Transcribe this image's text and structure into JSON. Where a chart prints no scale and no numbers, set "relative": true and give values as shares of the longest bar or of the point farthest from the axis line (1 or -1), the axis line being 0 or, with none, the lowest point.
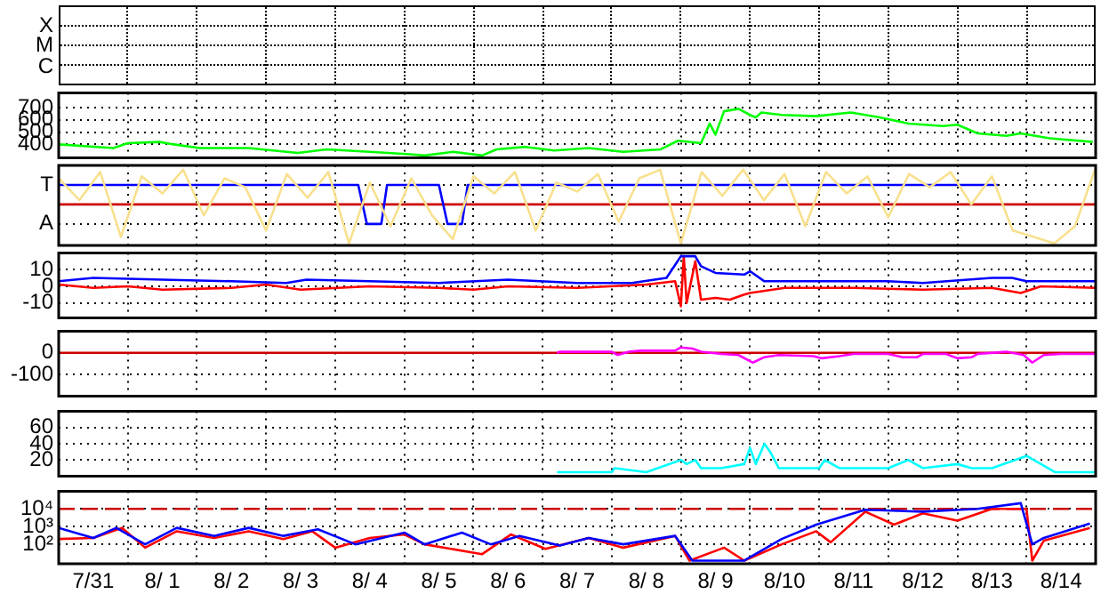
{
  "chart_data": [
    {
      "type": "other",
      "annotations": [
        "X",
        "M",
        "C"
      ]
    },
    {
      "type": "line",
      "grid": true,
      "tick_labels": "y",
      "xlim": [
        "--07-31T00:00",
        "--08-15T00:00"
      ],
      "ylim": [
        290,
        820
      ],
      "xticks": [
        {
          "value": "--07-31T00:00",
          "label": null
        },
        {
          "value": "--08-01T00:00",
          "label": null
        },
        {
          "value": "--08-02T00:00",
          "label": null
        },
        {
          "value": "--08-03T00:00",
          "label": null
        },
        {
          "value": "--08-04T00:00",
          "label": null
        },
        {
          "value": "--08-05T00:00",
          "label": null
        },
        {
          "value": "--08-06T00:00",
          "label": null
        },
        {
          "value": "--08-07T00:00",
          "label": null
        },
        {
          "value": "--08-08T00:00",
          "label": null
        },
        {
          "value": "--08-09T00:00",
          "label": null
        },
        {
          "value": "--08-10T00:00",
          "label": null
        },
        {
          "value": "--08-11T00:00",
          "label": null
        },
        {
          "value": "--08-12T00:00",
          "label": null
        },
        {
          "value": "--08-13T00:00",
          "label": null
        },
        {
          "value": "--08-14T00:00",
          "label": null
        },
        {
          "value": "--08-15T00:00",
          "label": null
        }
      ],
      "yticks": [
        400,
        500,
        600,
        700
      ],
      "series": [
        {
          "color": "#00ff00",
          "x": [
            "--07-31T00:00",
            "--07-31T19:00",
            "--08-01T00:00",
            "--08-01T11:00",
            "--08-01T16:00",
            "--08-02T01:00",
            "--08-02T18:00",
            "--08-03T11:00",
            "--08-03T21:00",
            "--08-04T12:00",
            "--08-05T02:00",
            "--08-05T07:00",
            "--08-05T17:00",
            "--08-06T03:00",
            "--08-06T08:00",
            "--08-06T18:00",
            "--08-07T04:00",
            "--08-07T16:00",
            "--08-08T04:00",
            "--08-08T17:00",
            "--08-08T23:00",
            "--08-09T07:00",
            "--08-09T10:00",
            "--08-09T12:00",
            "--08-09T15:00",
            "--08-09T20:00",
            "--08-10T00:00",
            "--08-10T02:00",
            "--08-10T04:00",
            "--08-10T11:00",
            "--08-10T23:00",
            "--08-11T11:00",
            "--08-11T21:00",
            "--08-12T07:00",
            "--08-12T19:00",
            "--08-13T00:00",
            "--08-13T07:00",
            "--08-13T17:00",
            "--08-13T22:00",
            "--08-14T08:00",
            "--08-14T23:00"
          ],
          "values": [
            400,
            370,
            410,
            420,
            400,
            370,
            370,
            330,
            360,
            340,
            320,
            310,
            340,
            310,
            360,
            380,
            350,
            370,
            340,
            360,
            430,
            410,
            570,
            480,
            670,
            690,
            640,
            620,
            660,
            640,
            630,
            660,
            620,
            570,
            550,
            560,
            490,
            470,
            490,
            450,
            420
          ]
        }
      ]
    },
    {
      "type": "line",
      "grid": true,
      "relative": true,
      "tick_labels": false,
      "xlim": [
        "--07-31T00:00",
        "--08-15T00:00"
      ],
      "xticks": [
        {
          "value": "--07-31T00:00",
          "label": null
        },
        {
          "value": "--08-01T00:00",
          "label": null
        },
        {
          "value": "--08-02T00:00",
          "label": null
        },
        {
          "value": "--08-03T00:00",
          "label": null
        },
        {
          "value": "--08-04T00:00",
          "label": null
        },
        {
          "value": "--08-05T00:00",
          "label": null
        },
        {
          "value": "--08-06T00:00",
          "label": null
        },
        {
          "value": "--08-07T00:00",
          "label": null
        },
        {
          "value": "--08-08T00:00",
          "label": null
        },
        {
          "value": "--08-09T00:00",
          "label": null
        },
        {
          "value": "--08-10T00:00",
          "label": null
        },
        {
          "value": "--08-11T00:00",
          "label": null
        },
        {
          "value": "--08-12T00:00",
          "label": null
        },
        {
          "value": "--08-13T00:00",
          "label": null
        },
        {
          "value": "--08-14T00:00",
          "label": null
        },
        {
          "value": "--08-15T00:00",
          "label": null
        }
      ],
      "annotations": [
        "T",
        "A"
      ],
      "ref_lines": [
        {
          "axis": "y",
          "value": 0,
          "color": "#cc0000"
        }
      ],
      "series": [
        {
          "color": "#f8e08e",
          "x": [
            "--07-31T00:00",
            "--07-31T07:12",
            "--07-31T14:24",
            "--07-31T21:36",
            "--08-01T04:48",
            "--08-01T12:00",
            "--08-01T19:12",
            "--08-02T02:24",
            "--08-02T09:36",
            "--08-02T16:48",
            "--08-03T00:00",
            "--08-03T07:12",
            "--08-03T14:24",
            "--08-03T21:36",
            "--08-04T04:48",
            "--08-04T12:00",
            "--08-04T19:12",
            "--08-05T02:24",
            "--08-05T09:36",
            "--08-05T16:48",
            "--08-06T00:00",
            "--08-06T07:12",
            "--08-06T14:24",
            "--08-06T21:36",
            "--08-07T04:48",
            "--08-07T12:00",
            "--08-07T19:12",
            "--08-08T02:24",
            "--08-08T09:36",
            "--08-08T16:48",
            "--08-09T00:00",
            "--08-09T07:12",
            "--08-09T14:24",
            "--08-09T21:36",
            "--08-10T04:48",
            "--08-10T12:00",
            "--08-10T19:12",
            "--08-11T02:24",
            "--08-11T09:36",
            "--08-11T16:48",
            "--08-12T00:00",
            "--08-12T07:12",
            "--08-12T14:24",
            "--08-12T21:36",
            "--08-13T04:48",
            "--08-13T12:00",
            "--08-13T19:12",
            "--08-14T02:24",
            "--08-14T09:36",
            "--08-14T16:48",
            "--08-15T00:00"
          ],
          "values": [
            0.67,
            0.11,
            0.83,
            -0.83,
            0.72,
            0.28,
            0.89,
            -0.28,
            0.67,
            0.44,
            -0.67,
            0.78,
            0.17,
            0.83,
            -1,
            0.56,
            -0.56,
            0.67,
            -0.28,
            -0.89,
            0.72,
            0.28,
            0.83,
            -0.67,
            0.56,
            0.33,
            0.78,
            -0.44,
            0.67,
            0.89,
            -1,
            0.83,
            0.22,
            0.89,
            0.11,
            0.78,
            -0.56,
            0.83,
            0.28,
            0.72,
            -0.33,
            0.78,
            0.44,
            0.83,
            0,
            0.72,
            -0.67,
            -0.83,
            -1,
            -0.56,
            0.94
          ]
        },
        {
          "color": "#0000ff",
          "x": [
            "--07-31T00:00",
            "--08-04T08:00",
            "--08-04T11:00",
            "--08-04T16:00",
            "--08-04T18:00",
            "--08-05T12:00",
            "--08-05T15:00",
            "--08-05T20:00",
            "--08-05T22:00",
            "--08-13T14:00"
          ],
          "values": [
            0.5,
            0.5,
            -0.5,
            -0.5,
            0.5,
            0.5,
            -0.5,
            -0.5,
            0.5,
            0.5
          ]
        }
      ]
    },
    {
      "type": "line",
      "grid": true,
      "tick_labels": "y",
      "xlim": [
        "--07-31T00:00",
        "--08-15T00:00"
      ],
      "ylim": [
        -19,
        20
      ],
      "xticks": [
        {
          "value": "--07-31T00:00",
          "label": null
        },
        {
          "value": "--08-01T00:00",
          "label": null
        },
        {
          "value": "--08-02T00:00",
          "label": null
        },
        {
          "value": "--08-03T00:00",
          "label": null
        },
        {
          "value": "--08-04T00:00",
          "label": null
        },
        {
          "value": "--08-05T00:00",
          "label": null
        },
        {
          "value": "--08-06T00:00",
          "label": null
        },
        {
          "value": "--08-07T00:00",
          "label": null
        },
        {
          "value": "--08-08T00:00",
          "label": null
        },
        {
          "value": "--08-09T00:00",
          "label": null
        },
        {
          "value": "--08-10T00:00",
          "label": null
        },
        {
          "value": "--08-11T00:00",
          "label": null
        },
        {
          "value": "--08-12T00:00",
          "label": null
        },
        {
          "value": "--08-13T00:00",
          "label": null
        },
        {
          "value": "--08-14T00:00",
          "label": null
        },
        {
          "value": "--08-15T00:00",
          "label": null
        }
      ],
      "yticks": [
        -10,
        0,
        10
      ],
      "series": [
        {
          "color": "#0000ff",
          "x": [
            "--07-31T00:00",
            "--07-31T12:00",
            "--08-01T12:00",
            "--08-02T12:00",
            "--08-03T07:00",
            "--08-03T14:00",
            "--08-04T12:00",
            "--08-05T12:00",
            "--08-06T12:00",
            "--08-07T12:00",
            "--08-08T07:00",
            "--08-08T19:00",
            "--08-09T00:00",
            "--08-09T05:00",
            "--08-09T07:00",
            "--08-09T12:00",
            "--08-09T22:00",
            "--08-10T00:00",
            "--08-10T05:00",
            "--08-11T00:00",
            "--08-12T00:00",
            "--08-12T12:00",
            "--08-13T12:00",
            "--08-13T19:00",
            "--08-14T00:00",
            "--08-15T00:00"
          ],
          "values": [
            3,
            5,
            4,
            3,
            2,
            4,
            3,
            2,
            4,
            2,
            2,
            5,
            18,
            18,
            12,
            8,
            7,
            9,
            3,
            3,
            3,
            2,
            5,
            5,
            3,
            3
          ]
        },
        {
          "color": "#ff0000",
          "x": [
            "--07-31T00:00",
            "--07-31T12:00",
            "--08-01T00:00",
            "--08-01T12:00",
            "--08-02T12:00",
            "--08-03T00:00",
            "--08-03T12:00",
            "--08-04T12:00",
            "--08-05T12:00",
            "--08-06T00:00",
            "--08-06T12:00",
            "--08-07T12:00",
            "--08-08T12:00",
            "--08-08T22:00",
            "--08-09T00:00",
            "--08-09T01:00",
            "--08-09T02:00",
            "--08-09T05:00",
            "--08-09T07:00",
            "--08-09T12:00",
            "--08-09T17:00",
            "--08-09T22:00",
            "--08-10T00:00",
            "--08-10T12:00",
            "--08-11T12:00",
            "--08-12T12:00",
            "--08-13T12:00",
            "--08-13T22:00",
            "--08-14T05:00",
            "--08-15T00:00"
          ],
          "values": [
            1,
            -1,
            0,
            -2,
            -1,
            1,
            -2,
            0,
            -1,
            -2,
            0,
            -1,
            1,
            3,
            -12,
            18,
            -10,
            15,
            -8,
            -7,
            -8,
            -5,
            -4,
            -1,
            -1,
            -2,
            -1,
            -4,
            0,
            -1
          ]
        }
      ]
    },
    {
      "type": "line",
      "grid": true,
      "tick_labels": "y",
      "xlim": [
        "--07-31T00:00",
        "--08-15T00:00"
      ],
      "ylim": [
        -200,
        100
      ],
      "xticks": [
        {
          "value": "--07-31T00:00",
          "label": null
        },
        {
          "value": "--08-01T00:00",
          "label": null
        },
        {
          "value": "--08-02T00:00",
          "label": null
        },
        {
          "value": "--08-03T00:00",
          "label": null
        },
        {
          "value": "--08-04T00:00",
          "label": null
        },
        {
          "value": "--08-05T00:00",
          "label": null
        },
        {
          "value": "--08-06T00:00",
          "label": null
        },
        {
          "value": "--08-07T00:00",
          "label": null
        },
        {
          "value": "--08-08T00:00",
          "label": null
        },
        {
          "value": "--08-09T00:00",
          "label": null
        },
        {
          "value": "--08-10T00:00",
          "label": null
        },
        {
          "value": "--08-11T00:00",
          "label": null
        },
        {
          "value": "--08-12T00:00",
          "label": null
        },
        {
          "value": "--08-13T00:00",
          "label": null
        },
        {
          "value": "--08-14T00:00",
          "label": null
        },
        {
          "value": "--08-15T00:00",
          "label": null
        }
      ],
      "yticks": [
        -100,
        0
      ],
      "ref_lines": [
        {
          "axis": "y",
          "value": 0,
          "color": "#cc0000"
        }
      ],
      "series": [
        {
          "color": "#ff00ff",
          "x": [
            "--08-07T05:00",
            "--08-07T06:00",
            "--08-08T00:00",
            "--08-08T02:00",
            "--08-08T06:00",
            "--08-08T10:00",
            "--08-08T22:00",
            "--08-09T00:00",
            "--08-09T04:00",
            "--08-09T07:00",
            "--08-09T14:00",
            "--08-09T20:00",
            "--08-10T01:00",
            "--08-10T05:00",
            "--08-10T10:00",
            "--08-10T22:00",
            "--08-11T01:00",
            "--08-11T07:00",
            "--08-11T12:00",
            "--08-12T00:00",
            "--08-12T05:00",
            "--08-12T10:00",
            "--08-12T12:00",
            "--08-12T20:00",
            "--08-13T00:00",
            "--08-13T05:00",
            "--08-13T07:00",
            "--08-13T17:00",
            "--08-13T23:00",
            "--08-14T02:00",
            "--08-14T06:00",
            "--08-14T12:00",
            "--08-15T00:00"
          ],
          "values": [
            0,
            5,
            5,
            -10,
            5,
            10,
            10,
            25,
            20,
            5,
            -5,
            -10,
            -45,
            -20,
            -10,
            -15,
            -25,
            -15,
            -5,
            -5,
            -20,
            -20,
            -5,
            -5,
            -25,
            -20,
            -5,
            5,
            -10,
            -45,
            -10,
            -5,
            -5
          ]
        }
      ]
    },
    {
      "type": "line",
      "grid": true,
      "tick_labels": "y",
      "xlim": [
        "--07-31T00:00",
        "--08-15T00:00"
      ],
      "ylim": [
        0,
        80
      ],
      "xticks": [
        {
          "value": "--07-31T00:00",
          "label": null
        },
        {
          "value": "--08-01T00:00",
          "label": null
        },
        {
          "value": "--08-02T00:00",
          "label": null
        },
        {
          "value": "--08-03T00:00",
          "label": null
        },
        {
          "value": "--08-04T00:00",
          "label": null
        },
        {
          "value": "--08-05T00:00",
          "label": null
        },
        {
          "value": "--08-06T00:00",
          "label": null
        },
        {
          "value": "--08-07T00:00",
          "label": null
        },
        {
          "value": "--08-08T00:00",
          "label": null
        },
        {
          "value": "--08-09T00:00",
          "label": null
        },
        {
          "value": "--08-10T00:00",
          "label": null
        },
        {
          "value": "--08-11T00:00",
          "label": null
        },
        {
          "value": "--08-12T00:00",
          "label": null
        },
        {
          "value": "--08-13T00:00",
          "label": null
        },
        {
          "value": "--08-14T00:00",
          "label": null
        },
        {
          "value": "--08-15T00:00",
          "label": null
        }
      ],
      "yticks": [
        20,
        40,
        60
      ],
      "series": [
        {
          "color": "#00ffff",
          "x": [
            "--08-07T05:00",
            "--08-08T00:00",
            "--08-08T01:00",
            "--08-08T12:00",
            "--08-09T00:00",
            "--08-09T02:00",
            "--08-09T05:00",
            "--08-09T07:00",
            "--08-09T14:00",
            "--08-09T22:00",
            "--08-10T00:00",
            "--08-10T02:00",
            "--08-10T05:00",
            "--08-10T07:00",
            "--08-10T10:00",
            "--08-11T00:00",
            "--08-11T02:00",
            "--08-11T07:00",
            "--08-12T00:00",
            "--08-12T07:00",
            "--08-12T12:00",
            "--08-13T00:00",
            "--08-13T05:00",
            "--08-13T12:00",
            "--08-14T00:00",
            "--08-14T05:00",
            "--08-14T10:00",
            "--08-15T00:00"
          ],
          "values": [
            5,
            5,
            10,
            5,
            20,
            15,
            20,
            10,
            10,
            15,
            35,
            15,
            40,
            30,
            10,
            10,
            20,
            10,
            10,
            20,
            10,
            15,
            10,
            10,
            25,
            15,
            5,
            5
          ]
        }
      ]
    },
    {
      "type": "line",
      "log": "y",
      "grid": true,
      "xlim": [
        "--07-31T00:00",
        "--08-15T00:00"
      ],
      "ylim": [
        8,
        100000
      ],
      "xticks": [
        {
          "value": "--07-31T00:00",
          "label": null
        },
        {
          "value": "--07-31T12:00",
          "label": "7/31"
        },
        {
          "value": "--08-01T00:00",
          "label": null
        },
        {
          "value": "--08-01T12:00",
          "label": "8/ 1"
        },
        {
          "value": "--08-02T00:00",
          "label": null
        },
        {
          "value": "--08-02T12:00",
          "label": "8/ 2"
        },
        {
          "value": "--08-03T00:00",
          "label": null
        },
        {
          "value": "--08-03T12:00",
          "label": "8/ 3"
        },
        {
          "value": "--08-04T00:00",
          "label": null
        },
        {
          "value": "--08-04T12:00",
          "label": "8/ 4"
        },
        {
          "value": "--08-05T00:00",
          "label": null
        },
        {
          "value": "--08-05T12:00",
          "label": "8/ 5"
        },
        {
          "value": "--08-06T00:00",
          "label": null
        },
        {
          "value": "--08-06T12:00",
          "label": "8/ 6"
        },
        {
          "value": "--08-07T00:00",
          "label": null
        },
        {
          "value": "--08-07T12:00",
          "label": "8/ 7"
        },
        {
          "value": "--08-08T00:00",
          "label": null
        },
        {
          "value": "--08-08T12:00",
          "label": "8/ 8"
        },
        {
          "value": "--08-09T00:00",
          "label": null
        },
        {
          "value": "--08-09T12:00",
          "label": "8/ 9"
        },
        {
          "value": "--08-10T00:00",
          "label": null
        },
        {
          "value": "--08-10T12:00",
          "label": "8/10"
        },
        {
          "value": "--08-11T00:00",
          "label": null
        },
        {
          "value": "--08-11T12:00",
          "label": "8/11"
        },
        {
          "value": "--08-12T00:00",
          "label": null
        },
        {
          "value": "--08-12T12:00",
          "label": "8/12"
        },
        {
          "value": "--08-13T00:00",
          "label": null
        },
        {
          "value": "--08-13T12:00",
          "label": "8/13"
        },
        {
          "value": "--08-14T00:00",
          "label": null
        },
        {
          "value": "--08-14T12:00",
          "label": "8/14"
        },
        {
          "value": "--08-15T00:00",
          "label": null
        }
      ],
      "yticks": [
        {
          "value": 100,
          "label": "10²"
        },
        {
          "value": 1000,
          "label": "10³"
        },
        {
          "value": 10000,
          "label": "10⁴"
        }
      ],
      "ref_lines": [
        {
          "axis": "y",
          "value": 10000,
          "color": "#cc0000",
          "line_style": "dashed"
        }
      ],
      "series": [
        {
          "color": "#0000ff",
          "x": [
            "--07-31T00:00",
            "--07-31T12:00",
            "--07-31T20:00",
            "--08-01T06:00",
            "--08-01T17:00",
            "--08-02T06:00",
            "--08-02T18:00",
            "--08-03T06:00",
            "--08-03T18:00",
            "--08-04T07:00",
            "--08-05T00:00",
            "--08-05T07:00",
            "--08-05T20:00",
            "--08-06T06:00",
            "--08-06T16:00",
            "--08-07T06:00",
            "--08-07T16:00",
            "--08-08T04:00",
            "--08-08T22:00",
            "--08-09T04:00",
            "--08-09T22:00",
            "--08-10T11:00",
            "--08-10T23:00",
            "--08-11T16:00",
            "--08-12T12:00",
            "--08-13T07:00",
            "--08-13T22:00",
            "--08-14T02:00",
            "--08-14T06:00",
            "--08-14T22:00"
          ],
          "values": [
            850,
            230,
            850,
            100,
            850,
            300,
            850,
            300,
            700,
            100,
            460,
            100,
            460,
            100,
            300,
            85,
            230,
            100,
            300,
            12,
            12,
            200,
            1300,
            9000,
            7000,
            10000,
            21000,
            100,
            230,
            1500
          ]
        },
        {
          "color": "#ff0000",
          "x": [
            "--07-31T00:00",
            "--07-31T12:00",
            "--07-31T22:00",
            "--08-01T06:00",
            "--08-01T17:00",
            "--08-02T06:00",
            "--08-02T18:00",
            "--08-03T06:00",
            "--08-03T16:00",
            "--08-04T00:00",
            "--08-04T12:00",
            "--08-05T00:00",
            "--08-05T07:00",
            "--08-06T03:00",
            "--08-06T13:00",
            "--08-07T01:00",
            "--08-07T16:00",
            "--08-08T04:00",
            "--08-08T22:00",
            "--08-09T03:00",
            "--08-09T15:00",
            "--08-09T22:00",
            "--08-10T11:00",
            "--08-10T23:00",
            "--08-11T04:00",
            "--08-11T16:00",
            "--08-12T02:00",
            "--08-12T12:00",
            "--08-13T00:00",
            "--08-13T12:00",
            "--08-14T00:00",
            "--08-14T02:00",
            "--08-14T06:00",
            "--08-14T22:00"
          ],
          "values": [
            200,
            230,
            850,
            65,
            550,
            230,
            550,
            200,
            550,
            65,
            230,
            360,
            100,
            28,
            360,
            55,
            230,
            65,
            300,
            12,
            65,
            12,
            100,
            550,
            130,
            7000,
            1300,
            5600,
            2200,
            10000,
            10000,
            12,
            160,
            850
          ]
        }
      ]
    }
  ]
}
